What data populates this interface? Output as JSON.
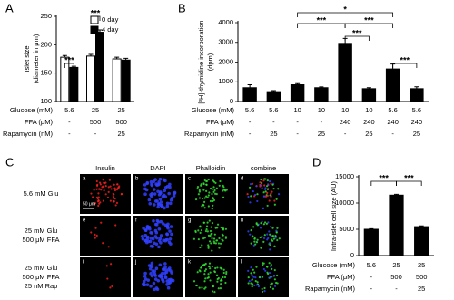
{
  "chart_data": [
    {
      "type": "bar",
      "panel_label": "A",
      "y_label": [
        "Islet size",
        "(diameter in μm)"
      ],
      "categories": [
        "5.6",
        "25",
        "25"
      ],
      "series": [
        {
          "name": "0 day",
          "color": "#ffffff",
          "values": [
            178,
            180,
            175
          ],
          "errors": [
            3,
            3,
            3
          ]
        },
        {
          "name": "4 day",
          "color": "#000000",
          "values": [
            160,
            222,
            173
          ],
          "errors": [
            2,
            4,
            3
          ]
        }
      ],
      "ylim": [
        100,
        250
      ],
      "yticks": [
        100,
        150,
        200,
        250
      ],
      "conditions": [
        {
          "label": "Glucose (mM)",
          "values": [
            "5.6",
            "25",
            "25"
          ]
        },
        {
          "label": "FFA (μM)",
          "values": [
            "-",
            "500",
            "500"
          ]
        },
        {
          "label": "Rapamycin (nM)",
          "values": [
            "-",
            "-",
            "25"
          ]
        }
      ],
      "significance": [
        "***",
        "***"
      ],
      "legend": "top-right"
    },
    {
      "type": "bar",
      "panel_label": "B",
      "y_label": [
        "[³H]-thymidine incorporation",
        "(dpm)"
      ],
      "categories": [
        "5.6",
        "5.6",
        "10",
        "10",
        "10",
        "10",
        "5.6",
        "5.6"
      ],
      "values": [
        700,
        500,
        850,
        700,
        2950,
        650,
        1650,
        650
      ],
      "errors": [
        150,
        50,
        60,
        40,
        250,
        50,
        250,
        100
      ],
      "color": "#000000",
      "ylim": [
        0,
        4000
      ],
      "yticks": [
        0,
        1000,
        2000,
        3000,
        4000
      ],
      "conditions": [
        {
          "label": "Glucose (mM)",
          "values": [
            "5.6",
            "5.6",
            "10",
            "10",
            "10",
            "10",
            "5.6",
            "5.6"
          ]
        },
        {
          "label": "FFA (μM)",
          "values": [
            "-",
            "-",
            "-",
            "-",
            "240",
            "240",
            "240",
            "240"
          ]
        },
        {
          "label": "Rapamycin (nM)",
          "values": [
            "-",
            "25",
            "-",
            "25",
            "-",
            "25",
            "-",
            "25"
          ]
        }
      ],
      "significance": [
        "*",
        "***",
        "***",
        "***",
        "***"
      ]
    },
    {
      "type": "bar",
      "panel_label": "D",
      "y_label": [
        "Intra-islet cell size (AU)"
      ],
      "categories": [
        "5.6",
        "25",
        "25"
      ],
      "values": [
        5000,
        11500,
        5500
      ],
      "errors": [
        100,
        150,
        150
      ],
      "color": "#000000",
      "ylim": [
        0,
        15000
      ],
      "yticks": [
        0,
        5000,
        10000,
        15000
      ],
      "conditions": [
        {
          "label": "Glucose (mM)",
          "values": [
            "5.6",
            "25",
            "25"
          ]
        },
        {
          "label": "FFA (μM)",
          "values": [
            "-",
            "500",
            "500"
          ]
        },
        {
          "label": "Rapamycin (nM)",
          "values": [
            "-",
            "-",
            "25"
          ]
        }
      ],
      "significance": [
        "***",
        "***"
      ]
    }
  ],
  "micrograph": {
    "panel_label": "C",
    "column_headers": [
      "Insulin",
      "DAPI",
      "Phalloidin",
      "combine"
    ],
    "row_labels": [
      [
        "5.6 mM Glu"
      ],
      [
        "25 mM Glu",
        "500 μM FFA"
      ],
      [
        "25 mM Glu",
        "500 μM FFA",
        "25 nM Rap"
      ]
    ],
    "tile_labels": [
      "a",
      "b",
      "c",
      "d",
      "e",
      "f",
      "g",
      "h",
      "i",
      "j",
      "k",
      "l"
    ],
    "scale_bar": "50 μm"
  }
}
